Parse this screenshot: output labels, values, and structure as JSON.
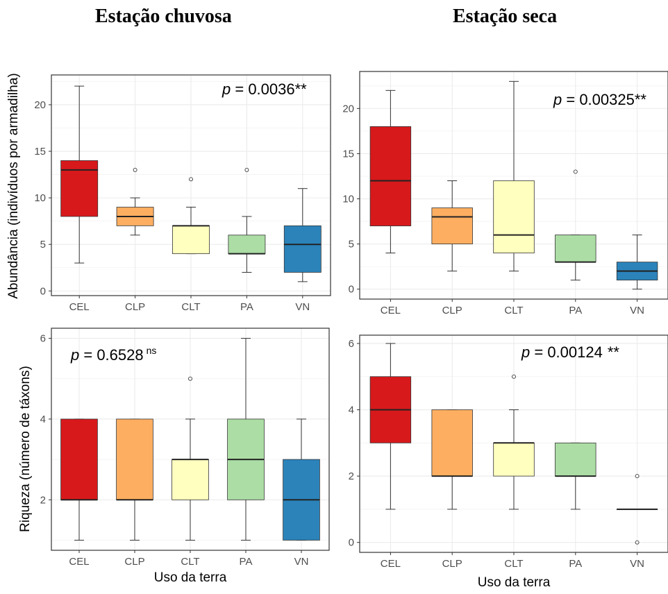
{
  "titles": {
    "left": "Estação chuvosa",
    "right": "Estação seca"
  },
  "colors": {
    "CEL": "#d7191c",
    "CLP": "#fdae61",
    "CLT": "#ffffbf",
    "PA": "#abdda4",
    "VN": "#2b83ba"
  },
  "chart_data": [
    {
      "type": "box",
      "id": "p1",
      "ylabel": "Abundância (indivíduos por armadilha)",
      "xlabel": "",
      "categories": [
        "CEL",
        "CLP",
        "CLT",
        "PA",
        "VN"
      ],
      "ylim": [
        -0.5,
        23.2
      ],
      "yticks": [
        0,
        5,
        10,
        15,
        20
      ],
      "annotation": {
        "p_label": "p",
        "text": " = 0.0036",
        "sig": "**"
      },
      "boxes": [
        {
          "min": 3,
          "q1": 8,
          "median": 13,
          "q3": 14,
          "max": 22,
          "outliers": []
        },
        {
          "min": 6,
          "q1": 7,
          "median": 8,
          "q3": 9,
          "max": 10,
          "outliers": [
            13
          ]
        },
        {
          "min": 4,
          "q1": 4,
          "median": 7,
          "q3": 7,
          "max": 9,
          "outliers": [
            12
          ]
        },
        {
          "min": 2,
          "q1": 4,
          "median": 4,
          "q3": 6,
          "max": 8,
          "outliers": [
            13
          ]
        },
        {
          "min": 1,
          "q1": 2,
          "median": 5,
          "q3": 7,
          "max": 11,
          "outliers": []
        }
      ]
    },
    {
      "type": "box",
      "id": "p2",
      "ylabel": "",
      "xlabel": "",
      "categories": [
        "CEL",
        "CLP",
        "CLT",
        "PA",
        "VN"
      ],
      "ylim": [
        -1.1,
        24.1
      ],
      "yticks": [
        0,
        5,
        10,
        15,
        20
      ],
      "annotation": {
        "p_label": "p",
        "text": " = 0.00325",
        "sig": "**"
      },
      "boxes": [
        {
          "min": 4,
          "q1": 7,
          "median": 12,
          "q3": 18,
          "max": 22,
          "outliers": []
        },
        {
          "min": 2,
          "q1": 5,
          "median": 8,
          "q3": 9,
          "max": 12,
          "outliers": []
        },
        {
          "min": 2,
          "q1": 4,
          "median": 6,
          "q3": 12,
          "max": 23,
          "outliers": []
        },
        {
          "min": 1,
          "q1": 3,
          "median": 3,
          "q3": 6,
          "max": 6,
          "outliers": [
            13
          ]
        },
        {
          "min": 0,
          "q1": 1,
          "median": 2,
          "q3": 3,
          "max": 6,
          "outliers": []
        }
      ]
    },
    {
      "type": "box",
      "id": "p3",
      "ylabel": "Riqueza (número de táxons)",
      "xlabel": "Uso da terra",
      "categories": [
        "CEL",
        "CLP",
        "CLT",
        "PA",
        "VN"
      ],
      "ylim": [
        0.75,
        6.25
      ],
      "yticks": [
        2,
        4,
        6
      ],
      "annotation": {
        "p_label": "p",
        "text": " = 0.6528",
        "sig": "ns"
      },
      "boxes": [
        {
          "min": 1,
          "q1": 2,
          "median": 2,
          "q3": 4,
          "max": 4,
          "outliers": []
        },
        {
          "min": 1,
          "q1": 2,
          "median": 2,
          "q3": 4,
          "max": 4,
          "outliers": []
        },
        {
          "min": 1,
          "q1": 2,
          "median": 3,
          "q3": 3,
          "max": 4,
          "outliers": [
            5
          ]
        },
        {
          "min": 1,
          "q1": 2,
          "median": 3,
          "q3": 4,
          "max": 6,
          "outliers": []
        },
        {
          "min": 1,
          "q1": 1,
          "median": 2,
          "q3": 3,
          "max": 4,
          "outliers": []
        }
      ]
    },
    {
      "type": "box",
      "id": "p4",
      "ylabel": "",
      "xlabel": "Uso da terra",
      "categories": [
        "CEL",
        "CLP",
        "CLT",
        "PA",
        "VN"
      ],
      "ylim": [
        -0.3,
        6.25
      ],
      "yticks": [
        0,
        2,
        4,
        6
      ],
      "annotation": {
        "p_label": "p",
        "text": " = 0.00124",
        "sig": "**"
      },
      "boxes": [
        {
          "min": 1,
          "q1": 3,
          "median": 4,
          "q3": 5,
          "max": 6,
          "outliers": []
        },
        {
          "min": 1,
          "q1": 2,
          "median": 2,
          "q3": 4,
          "max": 4,
          "outliers": []
        },
        {
          "min": 1,
          "q1": 2,
          "median": 3,
          "q3": 3,
          "max": 4,
          "outliers": [
            5
          ]
        },
        {
          "min": 1,
          "q1": 2,
          "median": 2,
          "q3": 3,
          "max": 3,
          "outliers": []
        },
        {
          "min": 1,
          "q1": 1,
          "median": 1,
          "q3": 1,
          "max": 1,
          "outliers": [
            2,
            0
          ]
        }
      ]
    }
  ]
}
